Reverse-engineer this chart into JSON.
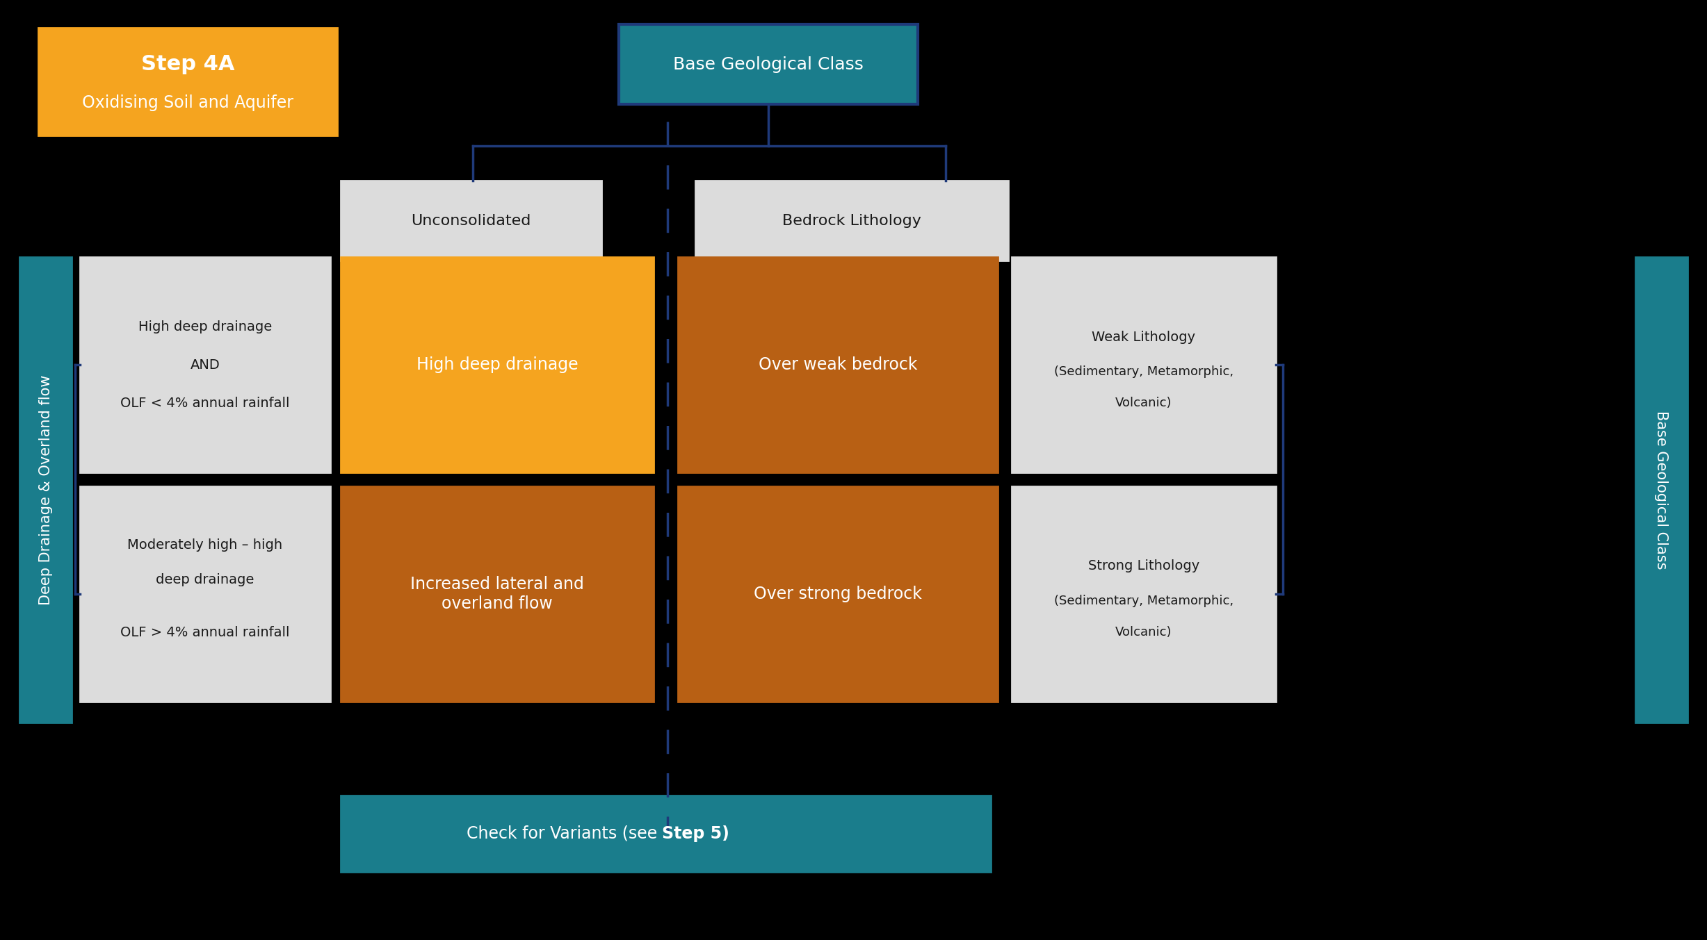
{
  "bg_color": "#000000",
  "teal_color": "#1a7d8c",
  "orange_color": "#f5a41f",
  "dark_orange_color": "#b86014",
  "light_gray_color": "#dcdcdc",
  "white": "#ffffff",
  "black": "#1a1a1a",
  "navy_line": "#1f3a7a",
  "title_line1": "Step 4A",
  "title_line2": "Oxidising Soil and Aquifer",
  "base_geo_class_top": "Base Geological Class",
  "unconsolidated": "Unconsolidated",
  "bedrock_lithology": "Bedrock Lithology",
  "deep_drainage_label": "Deep Drainage & Overland flow",
  "base_geo_class_right": "Base Geological Class",
  "cond1_line1": "High deep drainage",
  "cond1_line2": "AND",
  "cond1_line3": "OLF < 4% annual rainfall",
  "cond2_line1": "Moderately high – high",
  "cond2_line2": "deep drainage",
  "cond2_line3": "OLF > 4% annual rainfall",
  "result1_left": "High deep drainage",
  "result2_left": "Increased lateral and\noverland flow",
  "result1_right": "Over weak bedrock",
  "result2_right": "Over strong bedrock",
  "weak_litho_line1": "Weak Lithology",
  "weak_litho_line2": "(Sedimentary, Metamorphic,",
  "weak_litho_line3": "Volcanic)",
  "strong_litho_line1": "Strong Lithology",
  "strong_litho_line2": "(Sedimentary, Metamorphic,",
  "strong_litho_line3": "Volcanic)",
  "check_variants_prefix": "Check for Variants (see ",
  "check_variants_bold": "Step 5",
  "check_variants_suffix": ")"
}
